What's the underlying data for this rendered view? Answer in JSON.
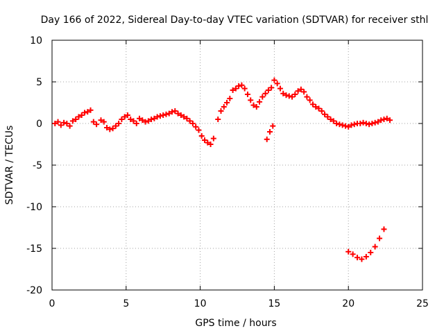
{
  "chart_data": {
    "type": "scatter",
    "title": "Day 166 of 2022, Sidereal Day-to-day VTEC variation (SDTVAR) for receiver sthl",
    "xlabel": "GPS time / hours",
    "ylabel": "SDTVAR / TECUs",
    "xlim": [
      0,
      25
    ],
    "ylim": [
      -20,
      10
    ],
    "xticks": [
      0,
      5,
      10,
      15,
      20,
      25
    ],
    "yticks": [
      -20,
      -15,
      -10,
      -5,
      0,
      5,
      10
    ],
    "grid": true,
    "marker": "+",
    "color": "#ff0000",
    "series": [
      {
        "name": "SDTVAR",
        "x": [
          0.2,
          0.4,
          0.6,
          0.8,
          1.0,
          1.2,
          1.4,
          1.6,
          1.8,
          2.0,
          2.2,
          2.4,
          2.6,
          2.8,
          3.0,
          3.3,
          3.5,
          3.7,
          3.9,
          4.1,
          4.3,
          4.5,
          4.7,
          4.9,
          5.1,
          5.3,
          5.5,
          5.7,
          5.9,
          6.1,
          6.3,
          6.5,
          6.7,
          6.9,
          7.1,
          7.3,
          7.5,
          7.7,
          7.9,
          8.1,
          8.3,
          8.5,
          8.7,
          8.9,
          9.1,
          9.3,
          9.5,
          9.7,
          9.9,
          10.1,
          10.3,
          10.5,
          10.7,
          10.9,
          11.2,
          11.4,
          11.6,
          11.8,
          12.0,
          12.2,
          12.4,
          12.6,
          12.8,
          13.0,
          13.2,
          13.4,
          13.6,
          13.8,
          14.0,
          14.2,
          14.4,
          14.6,
          14.8,
          15.0,
          15.2,
          15.4,
          15.6,
          15.8,
          16.0,
          16.2,
          16.4,
          16.6,
          16.8,
          17.0,
          17.2,
          17.4,
          17.6,
          17.8,
          18.0,
          18.2,
          18.4,
          18.6,
          18.8,
          19.0,
          19.2,
          19.4,
          19.6,
          19.8,
          20.0,
          20.2,
          20.4,
          20.6,
          20.8,
          21.0,
          21.2,
          21.4,
          21.6,
          21.8,
          22.0,
          22.2,
          22.4,
          22.6,
          22.8,
          14.5,
          14.7,
          14.9,
          20.0,
          20.3,
          20.6,
          20.9,
          21.2,
          21.5,
          21.8,
          22.1,
          22.4
        ],
        "y": [
          0.0,
          0.2,
          -0.2,
          0.1,
          0.0,
          -0.3,
          0.3,
          0.5,
          0.8,
          1.0,
          1.3,
          1.4,
          1.6,
          0.2,
          -0.1,
          0.4,
          0.2,
          -0.5,
          -0.7,
          -0.6,
          -0.3,
          0.0,
          0.5,
          0.8,
          1.0,
          0.5,
          0.3,
          0.0,
          0.6,
          0.4,
          0.2,
          0.3,
          0.5,
          0.6,
          0.8,
          0.9,
          1.0,
          1.1,
          1.2,
          1.4,
          1.5,
          1.2,
          1.0,
          0.8,
          0.6,
          0.3,
          0.0,
          -0.4,
          -0.8,
          -1.5,
          -2.0,
          -2.3,
          -2.5,
          -1.8,
          0.5,
          1.5,
          2.0,
          2.5,
          3.0,
          4.0,
          4.2,
          4.5,
          4.6,
          4.2,
          3.5,
          2.8,
          2.2,
          2.0,
          2.6,
          3.2,
          3.6,
          4.0,
          4.3,
          5.2,
          4.8,
          4.2,
          3.6,
          3.4,
          3.3,
          3.2,
          3.5,
          3.9,
          4.1,
          3.8,
          3.2,
          2.8,
          2.3,
          2.0,
          1.8,
          1.5,
          1.1,
          0.8,
          0.5,
          0.3,
          0.0,
          -0.1,
          -0.2,
          -0.3,
          -0.4,
          -0.2,
          -0.1,
          0.0,
          0.0,
          0.1,
          0.0,
          -0.1,
          0.0,
          0.1,
          0.2,
          0.4,
          0.5,
          0.6,
          0.4,
          -1.9,
          -1.0,
          -0.3,
          -15.4,
          -15.7,
          -16.1,
          -16.3,
          -16.0,
          -15.5,
          -14.8,
          -13.8,
          -12.7
        ]
      }
    ]
  }
}
